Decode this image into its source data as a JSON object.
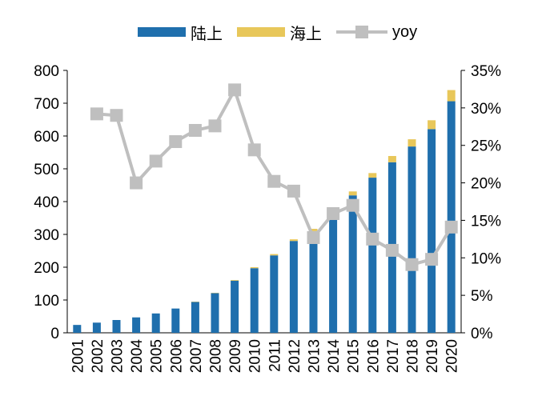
{
  "chart_data": {
    "type": "bar",
    "title": "",
    "categories": [
      "2001",
      "2002",
      "2003",
      "2004",
      "2005",
      "2006",
      "2007",
      "2008",
      "2009",
      "2010",
      "2011",
      "2012",
      "2013",
      "2014",
      "2015",
      "2016",
      "2017",
      "2018",
      "2019",
      "2020"
    ],
    "series": [
      {
        "name": "陆上",
        "type": "bar",
        "stacked": true,
        "axis": "left",
        "color": "#1f6fad",
        "values": [
          24,
          31,
          39,
          47,
          59,
          74,
          94,
          121,
          159,
          197,
          236,
          280,
          310,
          358,
          419,
          473,
          520,
          568,
          621,
          706
        ]
      },
      {
        "name": "海上",
        "type": "bar",
        "stacked": true,
        "axis": "left",
        "color": "#e8c75a",
        "values": [
          0,
          0,
          0,
          0,
          0,
          0,
          1,
          1,
          2,
          3,
          4,
          5,
          7,
          9,
          12,
          14,
          19,
          22,
          27,
          34
        ]
      },
      {
        "name": "yoy",
        "type": "line",
        "axis": "right",
        "color": "#bfbfbf",
        "marker": "square",
        "values": [
          null,
          29.2,
          29.0,
          20.0,
          22.9,
          25.5,
          27.0,
          27.6,
          32.4,
          24.4,
          20.2,
          18.9,
          12.7,
          15.9,
          17.0,
          12.5,
          11.0,
          9.1,
          9.8,
          14.1
        ]
      }
    ],
    "yaxis_left": {
      "ylim": [
        0,
        800
      ],
      "ticks": [
        "0",
        "100",
        "200",
        "300",
        "400",
        "500",
        "600",
        "700",
        "800"
      ]
    },
    "yaxis_right": {
      "ylim": [
        0,
        35
      ],
      "ticks": [
        "0%",
        "5%",
        "10%",
        "15%",
        "20%",
        "25%",
        "30%",
        "35%"
      ]
    },
    "xaxis": {
      "label_rotation": -90
    },
    "legend": {
      "position": "top-center"
    },
    "grid": false
  }
}
